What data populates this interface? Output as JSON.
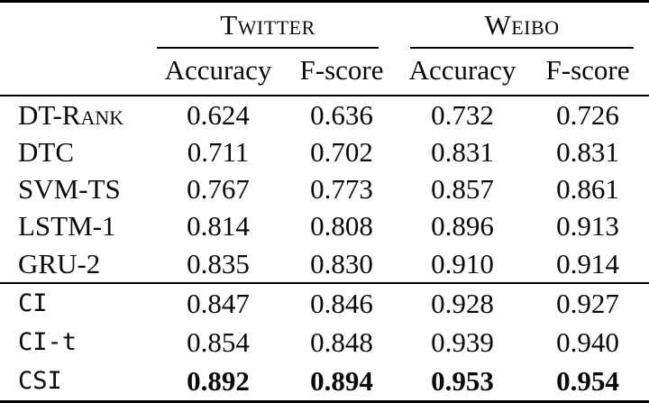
{
  "table": {
    "groups": [
      {
        "label": "Twitter",
        "columns": [
          "Accuracy",
          "F-score"
        ]
      },
      {
        "label": "Weibo",
        "columns": [
          "Accuracy",
          "F-score"
        ]
      }
    ],
    "col_headers": [
      "Accuracy",
      "F-score",
      "Accuracy",
      "F-score"
    ],
    "baseline_rows": [
      {
        "label": "DT-Rank",
        "values": [
          "0.624",
          "0.636",
          "0.732",
          "0.726"
        ]
      },
      {
        "label": "DTC",
        "values": [
          "0.711",
          "0.702",
          "0.831",
          "0.831"
        ]
      },
      {
        "label": "SVM-TS",
        "values": [
          "0.767",
          "0.773",
          "0.857",
          "0.861"
        ]
      },
      {
        "label": "LSTM-1",
        "values": [
          "0.814",
          "0.808",
          "0.896",
          "0.913"
        ]
      },
      {
        "label": "GRU-2",
        "values": [
          "0.835",
          "0.830",
          "0.910",
          "0.914"
        ]
      }
    ],
    "proposed_rows": [
      {
        "label": "CI",
        "values": [
          "0.847",
          "0.846",
          "0.928",
          "0.927"
        ],
        "bold": false
      },
      {
        "label": "CI-t",
        "values": [
          "0.854",
          "0.848",
          "0.939",
          "0.940"
        ],
        "bold": false
      },
      {
        "label": "CSI",
        "values": [
          "0.892",
          "0.894",
          "0.953",
          "0.954"
        ],
        "bold": true
      }
    ],
    "colors": {
      "text": "#0a0a0a",
      "rule": "#000000",
      "background": "#ffffff"
    }
  }
}
